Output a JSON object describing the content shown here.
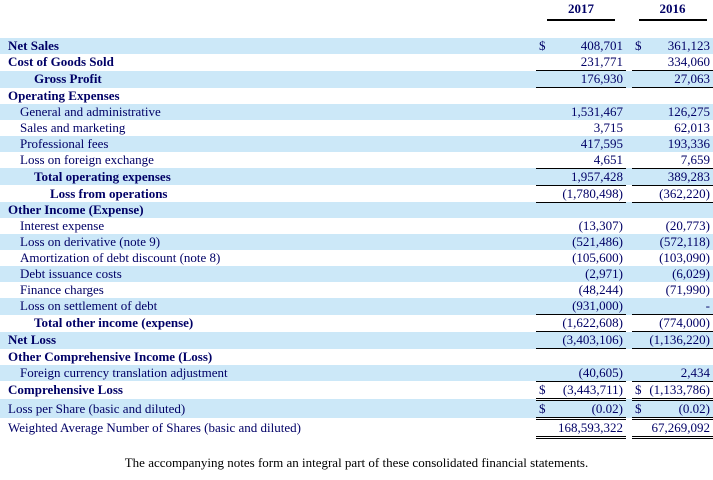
{
  "document": {
    "type": "consolidated-statement-of-operations"
  },
  "colors": {
    "row_highlight": "#cce8f8",
    "text": "#000066",
    "rule": "#000000"
  },
  "table": {
    "currency": "$",
    "columns": [
      "2017",
      "2016"
    ],
    "rows": [
      {
        "label": "Net Sales",
        "indent": 0,
        "bold": true,
        "dollar": true,
        "v1": "408,701",
        "v2": "361,123",
        "rule": "none"
      },
      {
        "label": "Cost of Goods Sold",
        "indent": 0,
        "bold": true,
        "v1": "231,771",
        "v2": "334,060",
        "rule": "single"
      },
      {
        "label": "Gross Profit",
        "indent": 2,
        "bold": true,
        "v1": "176,930",
        "v2": "27,063",
        "rule": "single"
      },
      {
        "label": "Operating Expenses",
        "indent": 0,
        "bold": true
      },
      {
        "label": "General and administrative",
        "indent": 1,
        "v1": "1,531,467",
        "v2": "126,275",
        "rule": "none"
      },
      {
        "label": "Sales and marketing",
        "indent": 1,
        "v1": "3,715",
        "v2": "62,013",
        "rule": "none"
      },
      {
        "label": "Professional fees",
        "indent": 1,
        "v1": "417,595",
        "v2": "193,336",
        "rule": "none"
      },
      {
        "label": "Loss on foreign exchange",
        "indent": 1,
        "v1": "4,651",
        "v2": "7,659",
        "rule": "single"
      },
      {
        "label": "Total operating expenses",
        "indent": 2,
        "bold": true,
        "v1": "1,957,428",
        "v2": "389,283",
        "rule": "single"
      },
      {
        "label": "Loss from operations",
        "indent": 3,
        "bold": true,
        "v1": "(1,780,498)",
        "v2": "(362,220)",
        "rule": "single"
      },
      {
        "label": "Other Income (Expense)",
        "indent": 0,
        "bold": true
      },
      {
        "label": "Interest expense",
        "indent": 1,
        "v1": "(13,307)",
        "v2": "(20,773)",
        "rule": "none"
      },
      {
        "label": "Loss on derivative (note 9)",
        "indent": 1,
        "v1": "(521,486)",
        "v2": "(572,118)",
        "rule": "none"
      },
      {
        "label": "Amortization of debt discount (note 8)",
        "indent": 1,
        "v1": "(105,600)",
        "v2": "(103,090)",
        "rule": "none"
      },
      {
        "label": "Debt issuance costs",
        "indent": 1,
        "v1": "(2,971)",
        "v2": "(6,029)",
        "rule": "none"
      },
      {
        "label": "Finance charges",
        "indent": 1,
        "v1": "(48,244)",
        "v2": "(71,990)",
        "rule": "none"
      },
      {
        "label": "Loss on settlement of debt",
        "indent": 1,
        "v1": "(931,000)",
        "v2": "-",
        "rule": "single"
      },
      {
        "label": "Total other income (expense)",
        "indent": 2,
        "bold": true,
        "v1": "(1,622,608)",
        "v2": "(774,000)",
        "rule": "single"
      },
      {
        "label": "Net Loss",
        "indent": 0,
        "bold": true,
        "v1": "(3,403,106)",
        "v2": "(1,136,220)",
        "rule": "single"
      },
      {
        "label": "Other Comprehensive Income (Loss)",
        "indent": 0,
        "bold": true
      },
      {
        "label": "Foreign currency translation adjustment",
        "indent": 1,
        "v1": "(40,605)",
        "v2": "2,434",
        "rule": "single"
      },
      {
        "label": "Comprehensive Loss",
        "indent": 0,
        "bold": true,
        "dollar": true,
        "v1": "(3,443,711)",
        "v2": "(1,133,786)",
        "rule": "double"
      },
      {
        "label": "Loss per Share (basic and diluted)",
        "indent": 0,
        "dollar": true,
        "v1": "(0.02)",
        "v2": "(0.02)",
        "rule": "double"
      },
      {
        "label": "Weighted Average Number of Shares (basic and diluted)",
        "indent": 0,
        "v1": "168,593,322",
        "v2": "67,269,092",
        "rule": "double"
      }
    ]
  },
  "footer": {
    "note": "The accompanying notes form an integral part of these consolidated financial statements."
  }
}
